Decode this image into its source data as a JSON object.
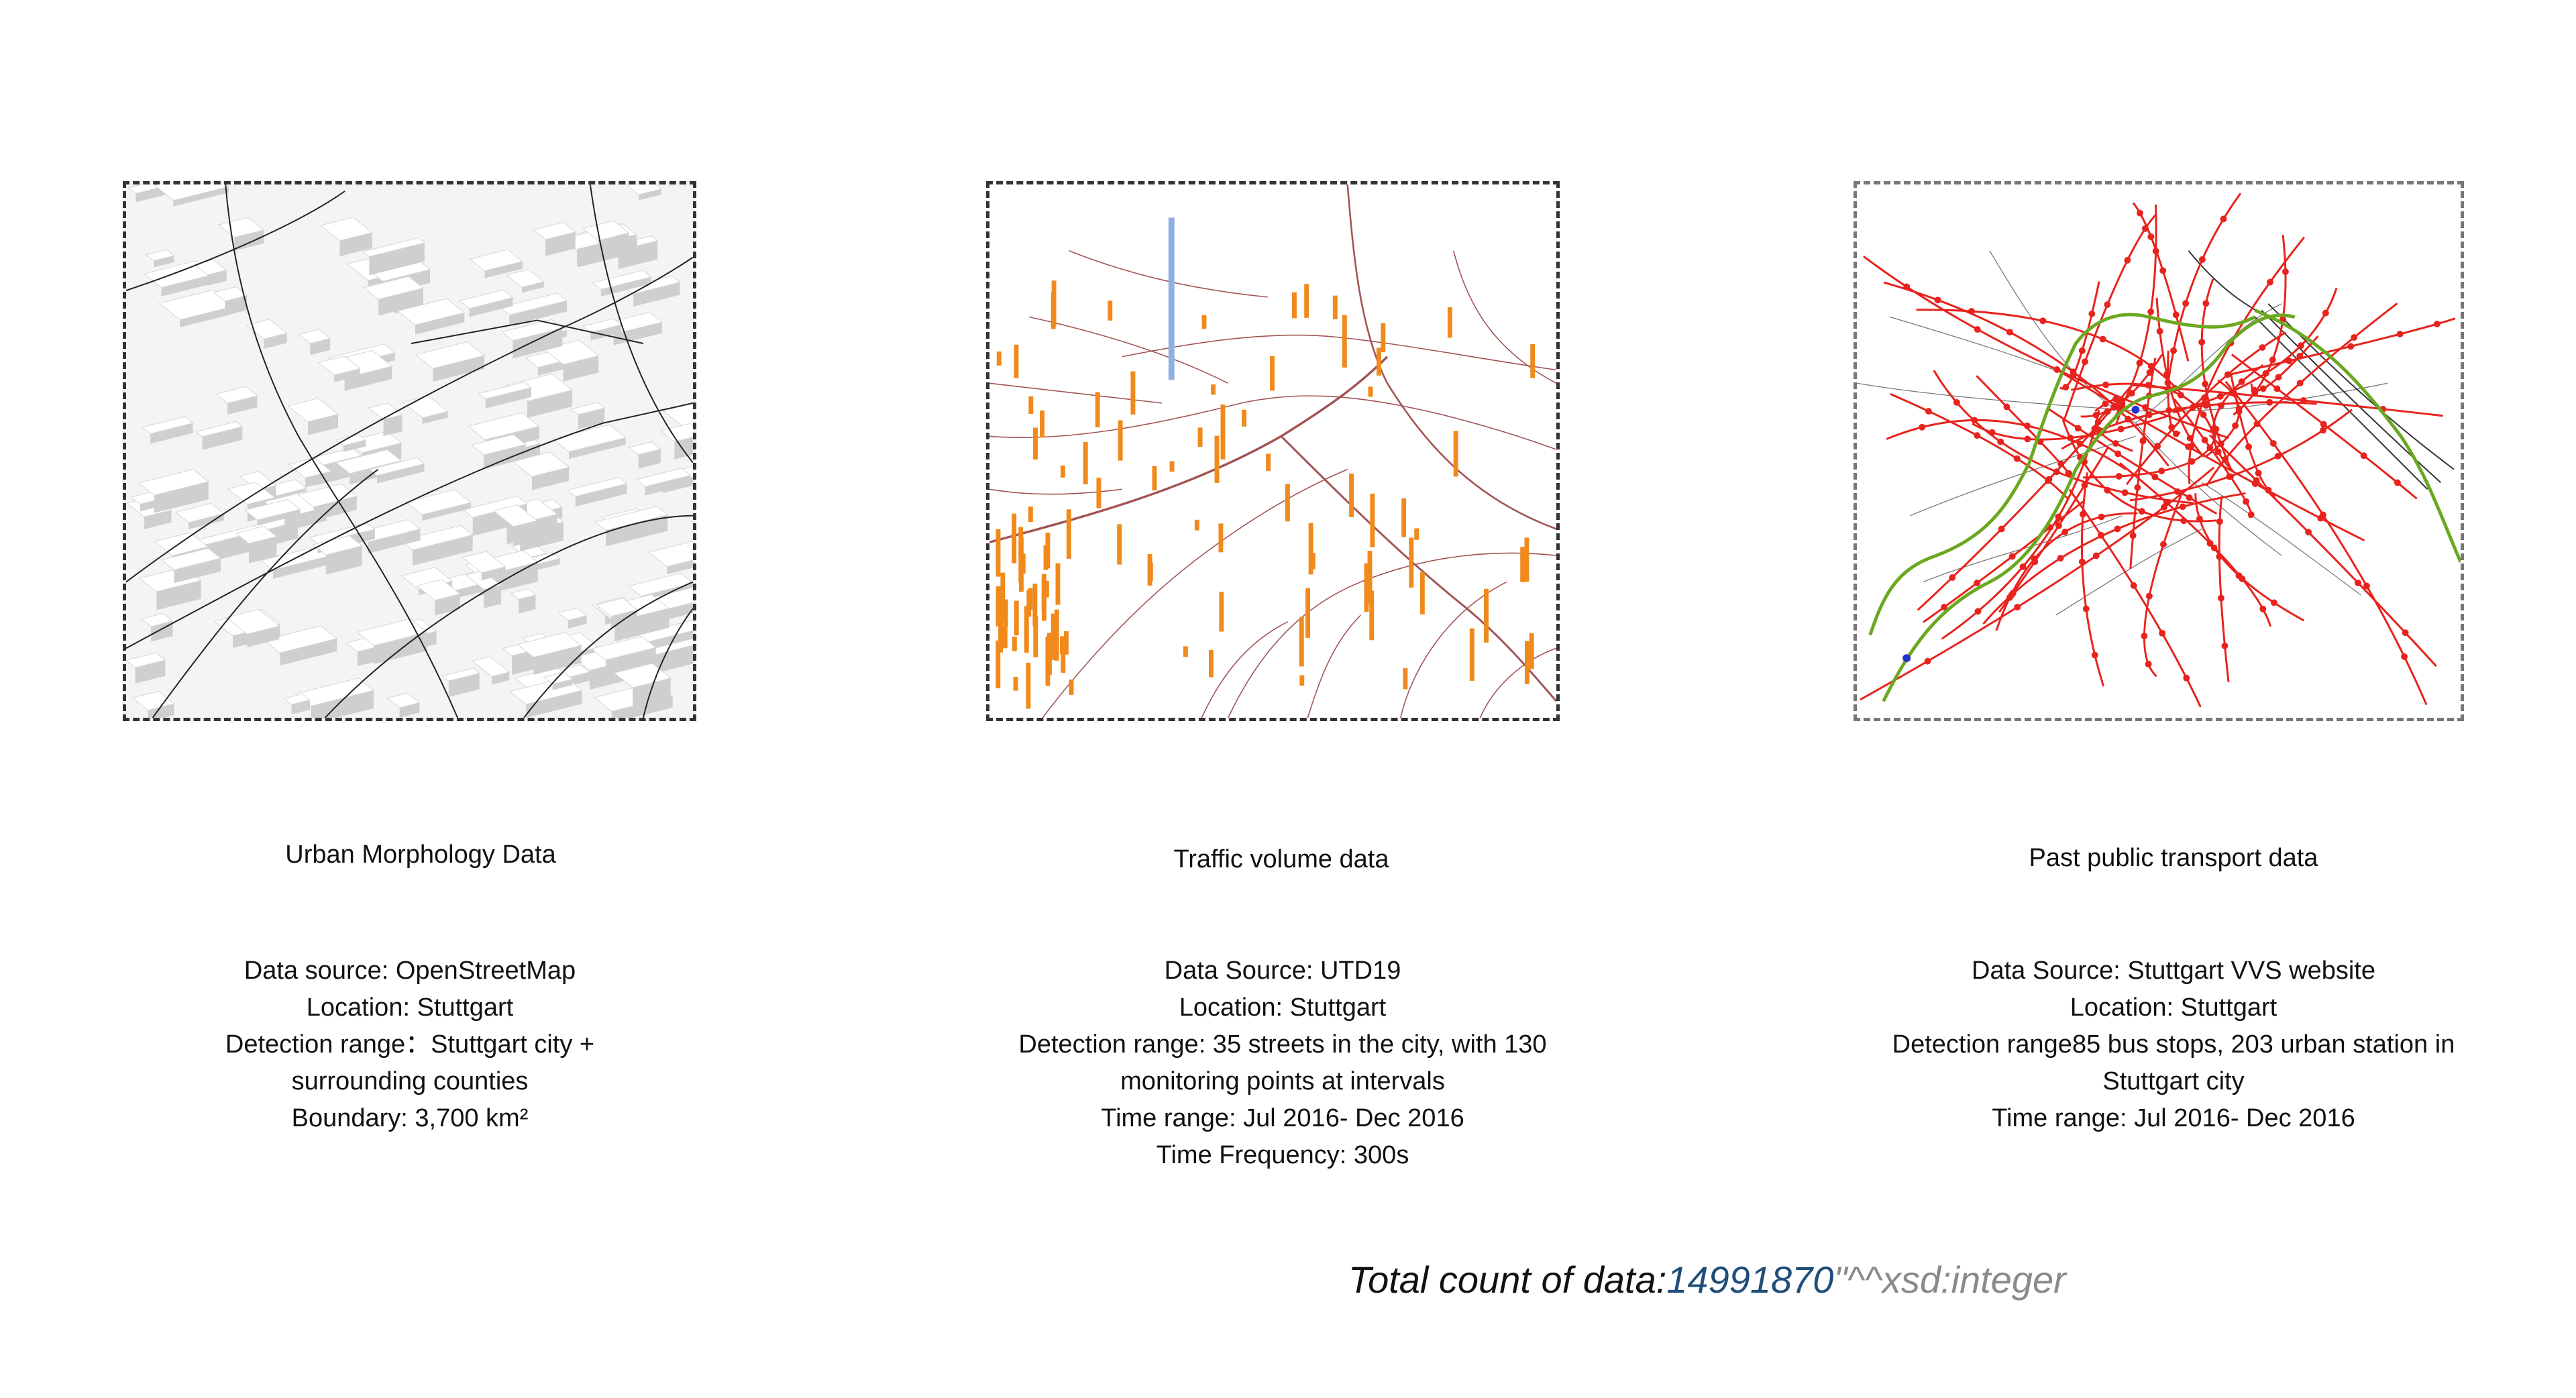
{
  "columns": [
    {
      "title": "Urban Morphology Data",
      "lines": [
        "Data source: OpenStreetMap",
        "Location: Stuttgart",
        "Detection range：Stuttgart city +",
        "surrounding counties",
        "Boundary: 3,700 km²"
      ]
    },
    {
      "title": "Traffic volume data",
      "lines": [
        "Data Source: UTD19",
        "Location: Stuttgart",
        "Detection range: 35 streets in the city, with 130",
        "monitoring points at intervals",
        "Time range: Jul 2016- Dec 2016",
        "Time Frequency: 300s"
      ]
    },
    {
      "title": "Past public transport data",
      "lines": [
        "Data Source: Stuttgart VVS website",
        "Location: Stuttgart",
        "Detection range85 bus stops, 203 urban station in",
        "Stuttgart city",
        "Time range: Jul 2016- Dec 2016"
      ]
    }
  ],
  "total": {
    "label": "Total count of data:",
    "value": "14991870",
    "type_suffix": "\"^^xsd:integer"
  },
  "colors": {
    "bus_lines": "#e8221c",
    "rail_lines": "#6aa820",
    "traffic_bars": "#f08a1c",
    "traffic_highlight": "#8fb0e0",
    "streets": "#8b2a2a"
  }
}
